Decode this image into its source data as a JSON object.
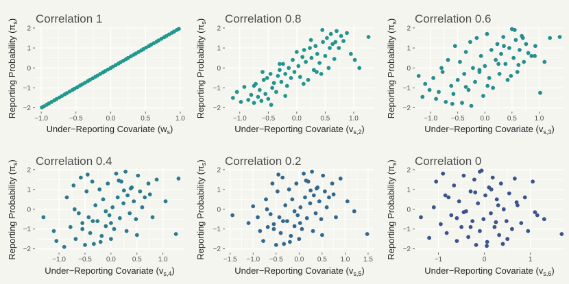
{
  "colors": {
    "background": "#f5f5f0",
    "grid": "#ffffff",
    "panel_points": [
      "#22988c",
      "#23948d",
      "#268c8e",
      "#2b7a8e",
      "#33688e",
      "#3b528b"
    ]
  },
  "chart_data": [
    {
      "type": "scatter",
      "title": "Correlation 1",
      "xlabel": "Under−Reporting Covariate (w",
      "xlabel_sub": "s",
      "ylabel": "Reporting Probability (π",
      "ylabel_sub": "s",
      "xticks": [
        -1.0,
        -0.5,
        0.0,
        0.5,
        1.0
      ],
      "xtick_labels": [
        "−1.0",
        "−0.5",
        "0.0",
        "0.5",
        "1.0"
      ],
      "yticks": [
        -2,
        -1,
        0,
        1,
        2
      ],
      "ytick_labels": [
        "−2",
        "−1",
        "0",
        "1",
        "2"
      ],
      "xlim": [
        -1.08,
        1.05
      ],
      "ylim": [
        -2.15,
        2.1
      ],
      "x": [
        -0.99,
        -0.96,
        -0.92,
        -0.89,
        -0.85,
        -0.81,
        -0.78,
        -0.74,
        -0.7,
        -0.66,
        -0.63,
        -0.59,
        -0.55,
        -0.52,
        -0.48,
        -0.44,
        -0.41,
        -0.37,
        -0.33,
        -0.3,
        -0.26,
        -0.22,
        -0.19,
        -0.15,
        -0.11,
        -0.08,
        -0.04,
        0.0,
        0.03,
        0.07,
        0.11,
        0.14,
        0.18,
        0.22,
        0.25,
        0.29,
        0.33,
        0.36,
        0.4,
        0.44,
        0.47,
        0.51,
        0.55,
        0.58,
        0.62,
        0.66,
        0.69,
        0.73,
        0.77,
        0.8,
        0.84,
        0.88,
        0.91,
        0.95,
        0.98
      ],
      "y": [
        -1.98,
        -1.92,
        -1.84,
        -1.78,
        -1.7,
        -1.62,
        -1.56,
        -1.48,
        -1.4,
        -1.32,
        -1.26,
        -1.18,
        -1.1,
        -1.04,
        -0.96,
        -0.88,
        -0.82,
        -0.74,
        -0.66,
        -0.6,
        -0.52,
        -0.44,
        -0.38,
        -0.3,
        -0.22,
        -0.16,
        -0.08,
        0.0,
        0.06,
        0.14,
        0.22,
        0.28,
        0.36,
        0.44,
        0.5,
        0.58,
        0.66,
        0.72,
        0.8,
        0.88,
        0.94,
        1.02,
        1.1,
        1.16,
        1.24,
        1.32,
        1.38,
        1.46,
        1.54,
        1.6,
        1.68,
        1.76,
        1.82,
        1.9,
        1.96
      ]
    },
    {
      "type": "scatter",
      "title": "Correlation 0.8",
      "xlabel": "Under−Reporting Covariate (v",
      "xlabel_sub": "s,2",
      "ylabel": "Reporting Probability (π",
      "ylabel_sub": "s",
      "xticks": [
        -1.0,
        -0.5,
        0.0,
        0.5,
        1.0
      ],
      "xtick_labels": [
        "−1.0",
        "−0.5",
        "0.0",
        "0.5",
        "1.0"
      ],
      "yticks": [
        -2,
        -1,
        0,
        1,
        2
      ],
      "ytick_labels": [
        "−2",
        "−1",
        "0",
        "1",
        "2"
      ],
      "xlim": [
        -1.25,
        1.35
      ],
      "ylim": [
        -2.15,
        2.1
      ],
      "x": [
        -1.12,
        -1.05,
        -0.98,
        -0.92,
        -0.85,
        -0.8,
        -0.75,
        -0.72,
        -0.68,
        -0.65,
        -0.62,
        -0.58,
        -0.55,
        -0.52,
        -0.5,
        -0.46,
        -0.43,
        -0.4,
        -0.36,
        -0.33,
        -0.3,
        -0.27,
        -0.24,
        -0.2,
        -0.17,
        -0.14,
        -0.1,
        -0.07,
        -0.04,
        0.0,
        0.03,
        0.06,
        0.1,
        0.13,
        0.16,
        0.2,
        0.23,
        0.26,
        0.3,
        0.33,
        0.36,
        0.4,
        0.43,
        0.46,
        0.5,
        0.53,
        0.56,
        0.6,
        0.63,
        0.66,
        0.7,
        0.74,
        0.78,
        0.82,
        0.88,
        0.95,
        1.02,
        1.1,
        1.26,
        -0.6,
        -0.45,
        -0.3,
        0.12,
        0.25,
        0.45,
        0.58,
        0.68,
        -0.75,
        -0.2,
        0.35
      ],
      "y": [
        -1.5,
        -1.2,
        -1.7,
        -0.95,
        -1.6,
        -1.35,
        -1.75,
        -0.8,
        -1.45,
        -1.1,
        -1.65,
        -0.6,
        -1.3,
        -0.5,
        -1.55,
        -0.3,
        -1.0,
        -0.75,
        -1.2,
        -0.4,
        -0.1,
        -0.7,
        0.2,
        -0.3,
        -0.9,
        0.0,
        -0.5,
        0.4,
        -0.2,
        0.8,
        0.1,
        -0.45,
        0.55,
        0.9,
        0.3,
        -0.6,
        1.0,
        0.5,
        -0.1,
        1.1,
        0.7,
        0.25,
        -0.3,
        1.3,
        0.6,
        1.5,
        0.0,
        1.7,
        1.2,
        0.45,
        1.85,
        1.0,
        1.6,
        1.35,
        1.75,
        0.7,
        0.4,
        0.0,
        1.55,
        -0.2,
        -1.85,
        0.2,
        -0.8,
        1.4,
        1.9,
        1.0,
        1.3,
        -0.9,
        -1.4,
        -0.2
      ]
    },
    {
      "type": "scatter",
      "title": "Correlation 0.6",
      "xlabel": "Under−Reporting Covariate (v",
      "xlabel_sub": "s,3",
      "ylabel": "Reporting Probability (π",
      "ylabel_sub": "s",
      "xticks": [
        -1.0,
        -0.5,
        0.0,
        0.5,
        1.0
      ],
      "xtick_labels": [
        "−1.0",
        "−0.5",
        "0.0",
        "0.5",
        "1.0"
      ],
      "yticks": [
        -2,
        -1,
        0,
        1,
        2
      ],
      "ytick_labels": [
        "−2",
        "−1",
        "0",
        "1",
        "2"
      ],
      "xlim": [
        -1.28,
        1.45
      ],
      "ylim": [
        -2.15,
        2.1
      ],
      "x": [
        -1.22,
        -1.15,
        -1.1,
        -1.02,
        -0.95,
        -0.9,
        -0.85,
        -0.78,
        -0.72,
        -0.68,
        -0.62,
        -0.58,
        -0.55,
        -0.5,
        -0.46,
        -0.42,
        -0.38,
        -0.35,
        -0.3,
        -0.27,
        -0.22,
        -0.18,
        -0.15,
        -0.1,
        -0.07,
        -0.03,
        0.0,
        0.04,
        0.08,
        0.12,
        0.15,
        0.2,
        0.23,
        0.27,
        0.3,
        0.34,
        0.38,
        0.42,
        0.45,
        0.5,
        0.53,
        0.57,
        0.6,
        0.64,
        0.68,
        0.72,
        0.76,
        0.8,
        0.86,
        0.93,
        1.02,
        1.1,
        1.2,
        1.38,
        -0.6,
        -0.35,
        -0.1,
        0.25,
        0.48,
        0.55,
        0.7,
        -0.8,
        -0.25,
        0.05,
        0.35,
        0.62,
        0.92
      ],
      "y": [
        -0.4,
        -1.45,
        -0.8,
        -1.1,
        -0.5,
        -1.55,
        -1.2,
        -0.2,
        -1.7,
        0.4,
        -0.9,
        -1.3,
        1.1,
        -0.6,
        0.3,
        -1.75,
        -0.3,
        0.8,
        -1.1,
        1.3,
        0.0,
        -0.7,
        1.5,
        -0.2,
        0.6,
        -1.4,
        0.1,
        1.7,
        -0.5,
        0.9,
        -1.0,
        0.4,
        1.2,
        -0.3,
        0.7,
        1.55,
        0.2,
        -0.6,
        1.0,
        1.95,
        0.5,
        1.4,
        -0.2,
        0.9,
        1.6,
        0.3,
        1.2,
        0.75,
        0.6,
        1.1,
        -1.25,
        0.3,
        1.5,
        1.55,
        -1.8,
        -0.95,
        -0.1,
        0.2,
        -0.4,
        1.9,
        1.5,
        0.0,
        -1.9,
        -0.9,
        1.1,
        0.15,
        0.6
      ]
    },
    {
      "type": "scatter",
      "title": "Correlation 0.4",
      "xlabel": "Under−Reporting Covariate (v",
      "xlabel_sub": "s,4",
      "ylabel": "Reporting Probability (π",
      "ylabel_sub": "s",
      "xticks": [
        -1.0,
        -0.5,
        0.0,
        0.5,
        1.0
      ],
      "xtick_labels": [
        "−1.0",
        "−0.5",
        "0.0",
        "0.5",
        "1.0"
      ],
      "yticks": [
        -2,
        -1,
        0,
        1,
        2
      ],
      "ytick_labels": [
        "−2",
        "−1",
        "0",
        "1",
        "2"
      ],
      "xlim": [
        -1.45,
        1.4
      ],
      "ylim": [
        -2.15,
        2.1
      ],
      "x": [
        -1.3,
        -1.1,
        -1.05,
        -0.9,
        -0.85,
        -0.78,
        -0.72,
        -0.68,
        -0.62,
        -0.58,
        -0.55,
        -0.5,
        -0.47,
        -0.43,
        -0.4,
        -0.36,
        -0.33,
        -0.3,
        -0.26,
        -0.22,
        -0.18,
        -0.15,
        -0.1,
        -0.06,
        -0.03,
        0.0,
        0.03,
        0.06,
        0.1,
        0.13,
        0.17,
        0.2,
        0.24,
        0.28,
        0.32,
        0.36,
        0.4,
        0.44,
        0.48,
        0.52,
        0.56,
        0.6,
        0.65,
        0.72,
        0.8,
        0.88,
        1.05,
        1.25,
        1.3,
        -0.7,
        -0.45,
        -0.2,
        0.0,
        0.25,
        0.5,
        -0.55,
        -0.35,
        0.15,
        0.38,
        0.75,
        -0.1,
        0.3
      ],
      "y": [
        -0.4,
        -1.1,
        -1.6,
        -1.9,
        0.6,
        -0.9,
        1.2,
        -1.5,
        -0.2,
        1.6,
        -0.7,
        -1.8,
        0.9,
        -0.4,
        -1.2,
        1.4,
        -1.75,
        0.2,
        -0.6,
        1.0,
        -1.35,
        0.5,
        -0.85,
        1.3,
        -0.3,
        -1.5,
        0.1,
        -1.0,
        1.8,
        0.6,
        -0.45,
        1.4,
        0.3,
        1.9,
        0.7,
        -0.2,
        1.1,
        0.4,
        -0.5,
        1.7,
        0.9,
        0.1,
        0.6,
        1.3,
        -0.4,
        1.5,
        0.4,
        -1.25,
        1.55,
        0.0,
        1.75,
        -1.65,
        -0.7,
        0.95,
        -1.3,
        -1.0,
        -0.6,
        1.45,
        1.05,
        0.75,
        -0.1,
        -1.1
      ]
    },
    {
      "type": "scatter",
      "title": "Correlation 0.2",
      "xlabel": "Under−Reporting Covariate (v",
      "xlabel_sub": "s,5",
      "ylabel": "Reporting Probability (π",
      "ylabel_sub": "s",
      "xticks": [
        -1.5,
        -1.0,
        -0.5,
        0.0,
        0.5,
        1.0,
        1.5
      ],
      "xtick_labels": [
        "−1.5",
        "−1.0",
        "−0.5",
        "0.0",
        "0.5",
        "1.0",
        "1.5"
      ],
      "yticks": [
        -2,
        -1,
        0,
        1,
        2
      ],
      "ytick_labels": [
        "−2",
        "−1",
        "0",
        "1",
        "2"
      ],
      "xlim": [
        -1.6,
        1.62
      ],
      "ylim": [
        -2.15,
        2.1
      ],
      "x": [
        -1.45,
        -1.1,
        -1.0,
        -0.9,
        -0.85,
        -0.78,
        -0.72,
        -0.68,
        -0.62,
        -0.58,
        -0.55,
        -0.5,
        -0.47,
        -0.43,
        -0.4,
        -0.36,
        -0.33,
        -0.3,
        -0.26,
        -0.22,
        -0.18,
        -0.15,
        -0.1,
        -0.06,
        -0.03,
        0.0,
        0.03,
        0.06,
        0.1,
        0.13,
        0.17,
        0.2,
        0.24,
        0.28,
        0.32,
        0.36,
        0.4,
        0.44,
        0.48,
        0.52,
        0.56,
        0.6,
        0.65,
        0.72,
        0.8,
        0.9,
        1.05,
        1.2,
        1.48,
        -0.7,
        -0.45,
        -0.2,
        0.02,
        0.25,
        0.5,
        -0.55,
        -0.35,
        0.15,
        0.38,
        0.75,
        -0.1,
        0.3
      ],
      "y": [
        -0.3,
        -0.7,
        0.15,
        -0.4,
        -1.1,
        -1.6,
        0.5,
        -0.9,
        -0.25,
        1.3,
        -0.75,
        -1.8,
        0.9,
        -0.4,
        -1.2,
        1.6,
        -1.75,
        0.2,
        -0.6,
        1.0,
        -1.35,
        0.5,
        -0.85,
        1.3,
        -0.3,
        -1.5,
        0.1,
        -1.0,
        1.8,
        0.6,
        -0.45,
        1.4,
        0.3,
        1.9,
        0.7,
        -0.2,
        1.1,
        0.4,
        -0.5,
        1.7,
        0.9,
        0.1,
        0.6,
        1.3,
        -0.4,
        1.55,
        0.4,
        -0.1,
        -1.25,
        0.0,
        1.75,
        -1.65,
        -0.7,
        0.95,
        -1.3,
        -1.0,
        -0.6,
        1.45,
        1.05,
        0.75,
        -0.1,
        -1.1
      ]
    },
    {
      "type": "scatter",
      "title": "Correlation 0",
      "xlabel": "Under−Reporting Covariate (v",
      "xlabel_sub": "s,6",
      "ylabel": "Reporting Probability (π",
      "ylabel_sub": "s",
      "xticks": [
        -1,
        0,
        1
      ],
      "xtick_labels": [
        "−1",
        "0",
        "1"
      ],
      "yticks": [
        -2,
        -1,
        0,
        1,
        2
      ],
      "ytick_labels": [
        "−2",
        "−1",
        "0",
        "1",
        "2"
      ],
      "xlim": [
        -1.5,
        1.72
      ],
      "ylim": [
        -2.15,
        2.1
      ],
      "x": [
        -1.38,
        -1.2,
        -1.1,
        -1.05,
        -0.95,
        -0.9,
        -0.82,
        -0.78,
        -0.72,
        -0.66,
        -0.6,
        -0.55,
        -0.5,
        -0.45,
        -0.4,
        -0.35,
        -0.3,
        -0.26,
        -0.22,
        -0.18,
        -0.14,
        -0.1,
        -0.06,
        -0.02,
        0.02,
        0.06,
        0.1,
        0.14,
        0.18,
        0.22,
        0.27,
        0.32,
        0.36,
        0.42,
        0.48,
        0.54,
        0.6,
        0.66,
        0.72,
        0.8,
        0.88,
        0.95,
        1.05,
        1.15,
        1.3,
        1.68,
        -0.85,
        -0.6,
        -0.3,
        -0.1,
        0.05,
        0.3,
        0.5,
        -0.45,
        0.15,
        0.4,
        0.7,
        1.1,
        -0.2,
        0.25
      ],
      "y": [
        -0.4,
        -1.45,
        0.1,
        1.4,
        -0.75,
        1.8,
        -1.2,
        0.6,
        -0.3,
        1.2,
        -1.6,
        0.4,
        -0.9,
        1.7,
        -0.1,
        -1.4,
        0.9,
        -0.6,
        1.5,
        -1.8,
        0.3,
        -1.1,
        1.95,
        -0.5,
        0.7,
        -1.65,
        1.1,
        -0.2,
        1.6,
        -0.9,
        0.5,
        -1.3,
        1.3,
        0.0,
        -0.6,
        0.8,
        -1.0,
        1.55,
        0.2,
        -0.7,
        0.6,
        -1.1,
        1.4,
        -0.3,
        -0.5,
        -1.25,
        0.7,
        -0.45,
        -0.9,
        1.9,
        -1.85,
        0.2,
        -1.5,
        -0.15,
        1.0,
        -1.75,
        0.35,
        -0.15,
        0.85,
        -0.65
      ]
    }
  ]
}
